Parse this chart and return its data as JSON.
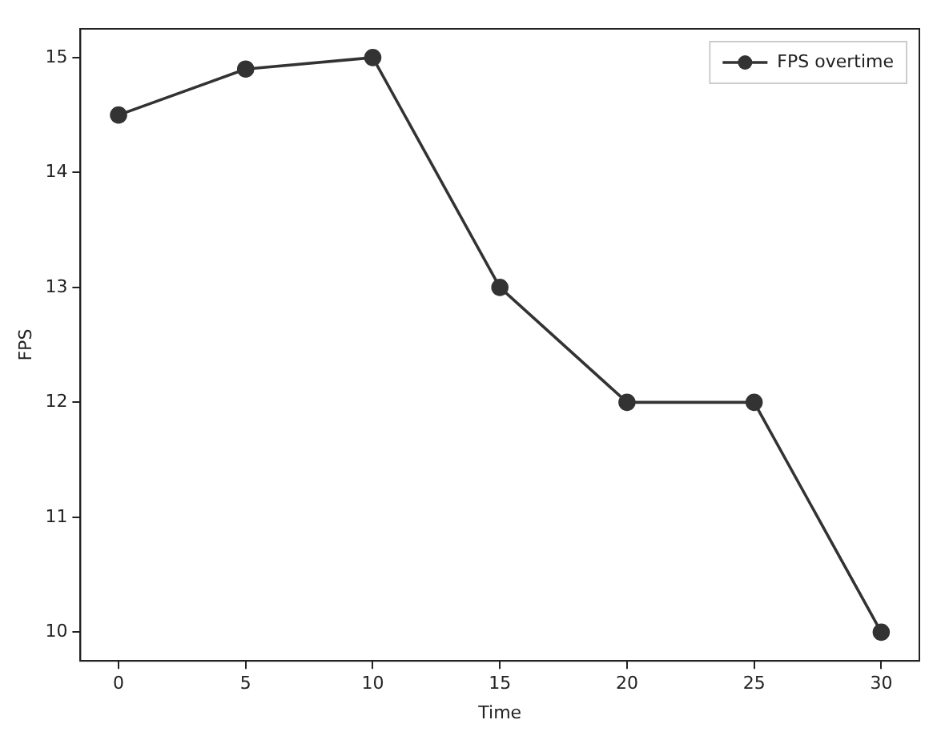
{
  "chart_data": {
    "type": "line",
    "xlabel": "Time",
    "ylabel": "FPS",
    "x": [
      0,
      5,
      10,
      15,
      20,
      25,
      30
    ],
    "series": [
      {
        "name": "FPS overtime",
        "color": "#333333",
        "values": [
          14.5,
          14.9,
          15,
          13,
          12,
          12,
          10
        ]
      }
    ],
    "xlim": [
      -1.5,
      31.5
    ],
    "xticks": [
      0,
      5,
      10,
      15,
      20,
      25,
      30
    ],
    "ylim": [
      9.75,
      15.25
    ],
    "yticks": [
      10,
      11,
      12,
      13,
      14,
      15
    ],
    "legend": "top right",
    "marker": "circle",
    "line_style": "solid"
  }
}
